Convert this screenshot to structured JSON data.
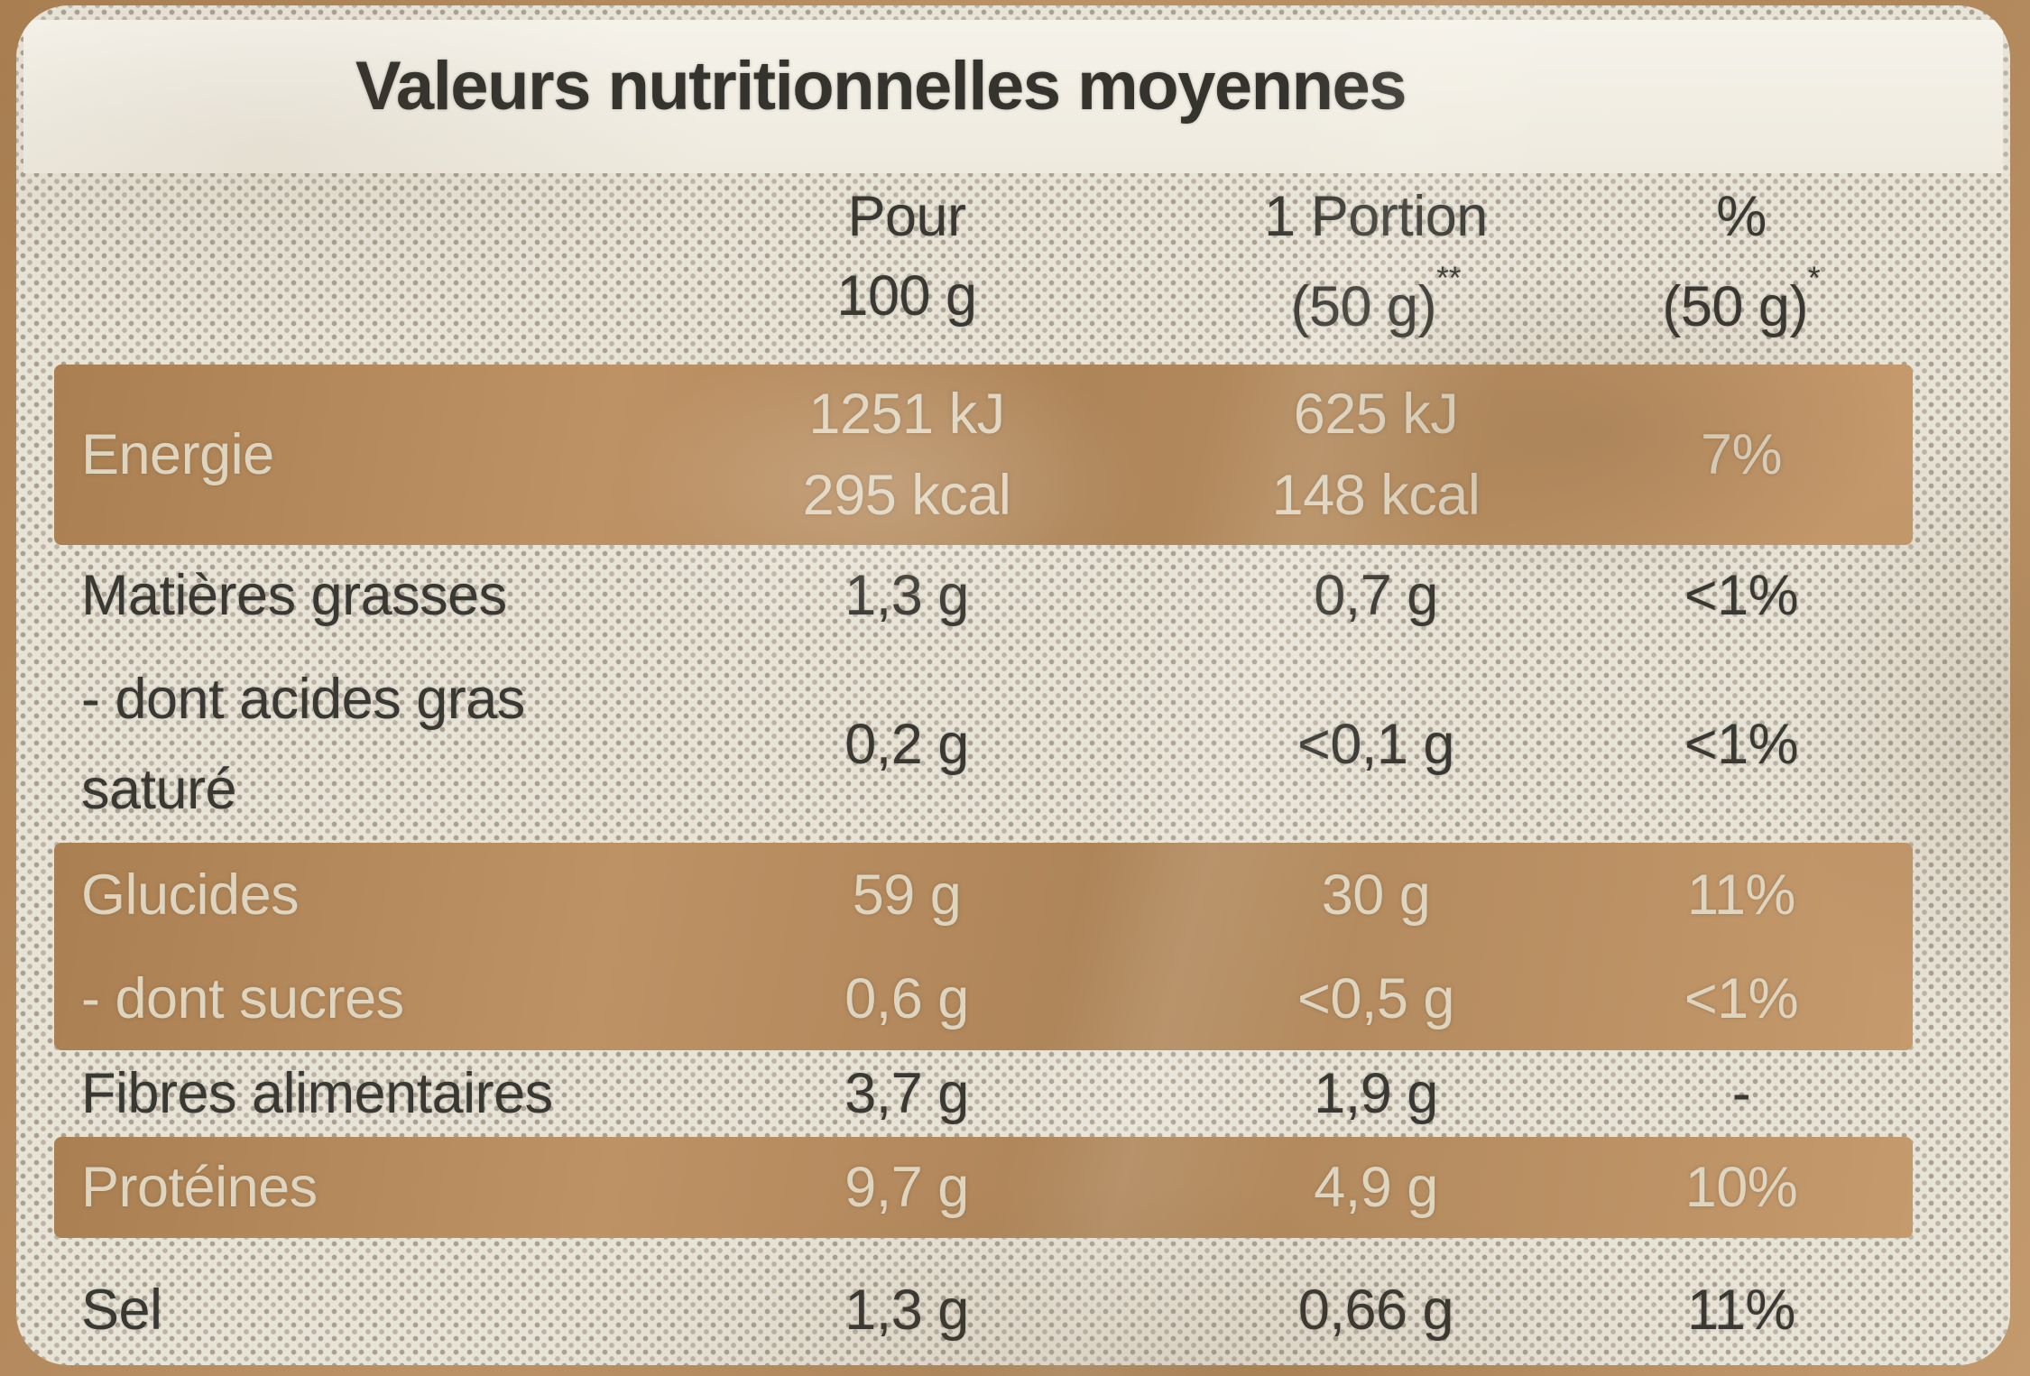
{
  "nutrition_label": {
    "title": "Valeurs nutritionnelles moyennes",
    "header": {
      "per100": {
        "line1": "Pour",
        "line2": "100 g"
      },
      "portion": {
        "line1": "1 Portion",
        "line2": "(50 g)",
        "footnote": "**"
      },
      "percent": {
        "line1": "%",
        "line2": "(50 g)",
        "footnote": "*"
      }
    },
    "rows": [
      {
        "label": "Energie",
        "per100_line1": "1251 kJ",
        "per100_line2": "295 kcal",
        "portion_line1": "625 kJ",
        "portion_line2": "148 kcal",
        "percent": "7%"
      },
      {
        "label": "Matières grasses",
        "per100": "1,3 g",
        "portion": "0,7 g",
        "percent": "<1%"
      },
      {
        "label_line1": "- dont acides gras",
        "label_line2": "saturé",
        "per100": "0,2 g",
        "portion": "<0,1 g",
        "percent": "<1%"
      },
      {
        "label": "Glucides",
        "per100": "59 g",
        "portion": "30 g",
        "percent": "11%"
      },
      {
        "label": "- dont sucres",
        "per100": "0,6 g",
        "portion": "<0,5 g",
        "percent": "<1%"
      },
      {
        "label": "Fibres alimentaires",
        "per100": "3,7 g",
        "portion": "1,9 g",
        "percent": "-"
      },
      {
        "label": "Protéines",
        "per100": "9,7 g",
        "portion": "4,9 g",
        "percent": "10%"
      },
      {
        "label": "Sel",
        "per100": "1,3 g",
        "portion": "0,66 g",
        "percent": "11%"
      }
    ],
    "colors": {
      "kraft_brown": "#b48a5c",
      "band_brown": "#ad8356",
      "halftone_base": "#e8e3d7",
      "ink_dark": "#3a3833",
      "ink_cream": "#ded5c1"
    }
  }
}
